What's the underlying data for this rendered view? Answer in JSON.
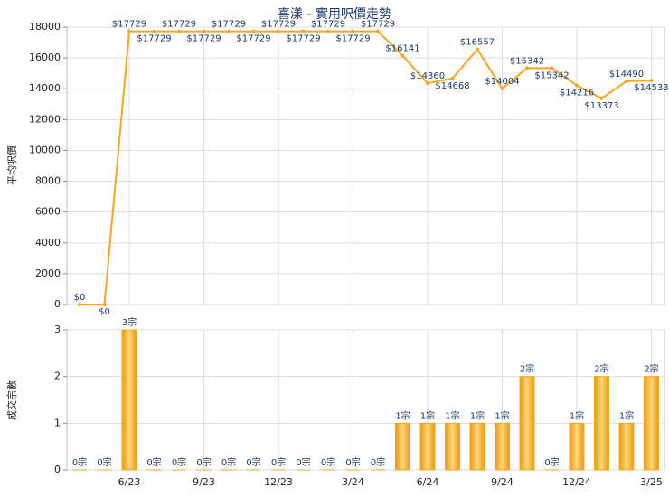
{
  "chart_data": [
    {
      "type": "line",
      "title": "喜漾 - 實用呎價走勢",
      "y_label": "平均呎價",
      "color": "#f5a623",
      "values": [
        0,
        0,
        17729,
        17729,
        17729,
        17729,
        17729,
        17729,
        17729,
        17729,
        17729,
        17729,
        17729,
        16141,
        14360,
        14668,
        16557,
        14004,
        15342,
        15342,
        14216,
        13373,
        14490,
        14533
      ],
      "value_labels": [
        "$0",
        "$0",
        "$17729",
        "$17729",
        "$17729",
        "$17729",
        "$17729",
        "$17729",
        "$17729",
        "$17729",
        "$17729",
        "$17729",
        "$17729",
        "$16141",
        "$14360",
        "$14668",
        "$16557",
        "$14004",
        "$15342",
        "$15342",
        "$14216",
        "$13373",
        "$14490",
        "$14533"
      ],
      "ylim": [
        0,
        18000
      ],
      "yticks": [
        0,
        2000,
        4000,
        6000,
        8000,
        10000,
        12000,
        14000,
        16000,
        18000
      ],
      "grid": true
    },
    {
      "type": "bar",
      "y_label": "成交宗數",
      "color": "#f5a623",
      "categories": [
        null,
        null,
        "6/23",
        null,
        null,
        "9/23",
        null,
        null,
        "12/23",
        null,
        null,
        "3/24",
        null,
        null,
        "6/24",
        null,
        null,
        "9/24",
        null,
        null,
        "12/24",
        null,
        null,
        "3/25"
      ],
      "values": [
        0,
        0,
        3,
        0,
        0,
        0,
        0,
        0,
        0,
        0,
        0,
        0,
        0,
        1,
        1,
        1,
        1,
        1,
        2,
        0,
        1,
        2,
        1,
        2
      ],
      "value_labels": [
        "0宗",
        "0宗",
        "3宗",
        "0宗",
        "0宗",
        "0宗",
        "0宗",
        "0宗",
        "0宗",
        "0宗",
        "0宗",
        "0宗",
        "0宗",
        "1宗",
        "1宗",
        "1宗",
        "1宗",
        "1宗",
        "2宗",
        "0宗",
        "1宗",
        "2宗",
        "1宗",
        "2宗"
      ],
      "ylim": [
        0,
        3
      ],
      "yticks": [
        0,
        1,
        2,
        3
      ],
      "grid": true
    }
  ]
}
